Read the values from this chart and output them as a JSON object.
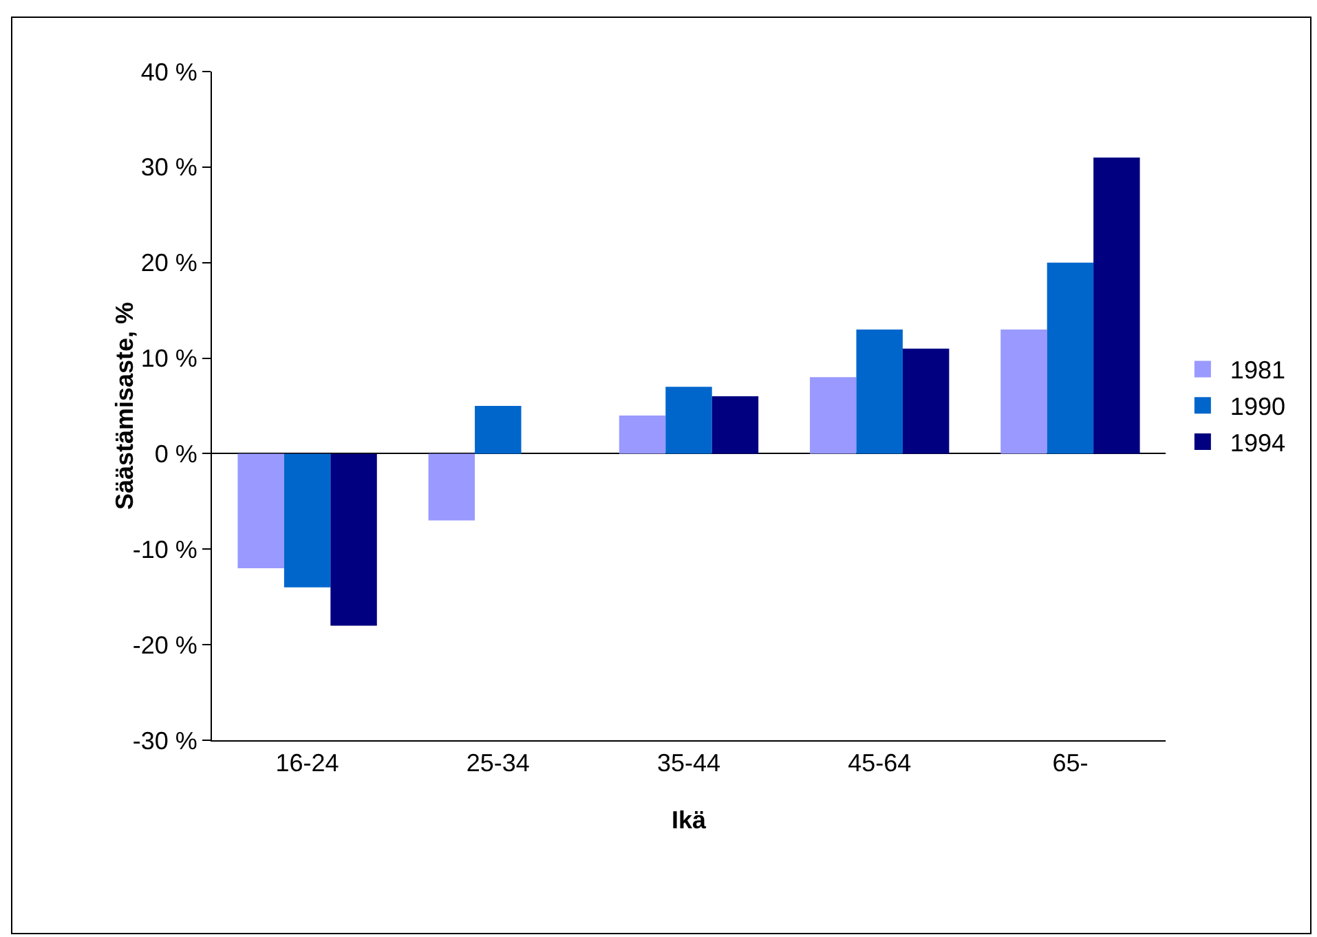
{
  "chart_data": {
    "type": "bar",
    "xlabel": "Ikä",
    "ylabel": "Säästämisaste, %",
    "categories": [
      "16-24",
      "25-34",
      "35-44",
      "45-64",
      "65-"
    ],
    "series": [
      {
        "name": "1981",
        "color": "#9999ff",
        "values": [
          -12,
          -7,
          4,
          8,
          13
        ]
      },
      {
        "name": "1990",
        "color": "#0066cc",
        "values": [
          -14,
          5,
          7,
          13,
          20
        ]
      },
      {
        "name": "1994",
        "color": "#000080",
        "values": [
          -18,
          null,
          6,
          11,
          31
        ]
      }
    ],
    "ylim": [
      -30,
      40
    ],
    "yticks": [
      {
        "value": -30,
        "label": "-30 %"
      },
      {
        "value": -20,
        "label": "-20 %"
      },
      {
        "value": -10,
        "label": "-10 %"
      },
      {
        "value": 0,
        "label": "0 %"
      },
      {
        "value": 10,
        "label": "10 %"
      },
      {
        "value": 20,
        "label": "20 %"
      },
      {
        "value": 30,
        "label": "30 %"
      },
      {
        "value": 40,
        "label": "40 %"
      }
    ],
    "legend": "right"
  }
}
